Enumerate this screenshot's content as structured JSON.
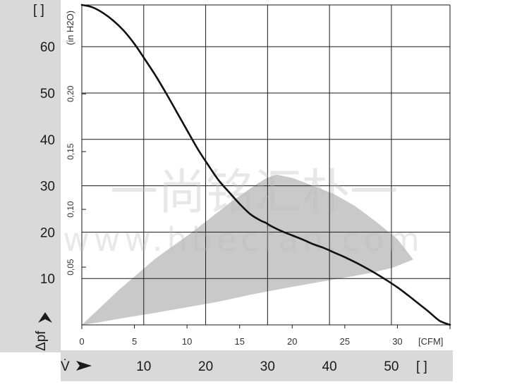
{
  "chart_data": {
    "type": "line",
    "title": "",
    "left_axis": {
      "unit_bracket": "[    ]",
      "symbol": "Δpf",
      "ticks": [
        10,
        20,
        30,
        40,
        50,
        60
      ],
      "range": [
        0,
        69
      ]
    },
    "inner_y_axis": {
      "label": "(in H2O)",
      "ticks": [
        "0,05",
        "0,10",
        "0,15",
        "0,20"
      ],
      "tick_values": [
        0.05,
        0.1,
        0.15,
        0.2
      ]
    },
    "bottom_axis": {
      "symbol": "V̇",
      "ticks": [
        10,
        20,
        30,
        40,
        50
      ],
      "unit_bracket": "[    ]"
    },
    "inner_x_axis": {
      "ticks": [
        "0",
        "5",
        "10",
        "15",
        "20",
        "25",
        "30"
      ],
      "tick_values": [
        0,
        5,
        10,
        15,
        20,
        25,
        30
      ],
      "unit": "[CFM]",
      "range": [
        0,
        35
      ]
    },
    "series": [
      {
        "x": [
          0,
          1,
          2,
          3,
          4,
          5,
          5.9,
          7,
          8,
          9,
          10,
          11,
          12,
          13,
          14,
          15,
          16,
          17,
          17.5,
          18,
          19,
          20,
          21,
          22,
          23,
          24,
          25,
          26,
          27,
          28,
          29,
          30,
          31,
          32,
          33,
          34,
          35
        ],
        "y": [
          69,
          68.5,
          67.3,
          65.6,
          63.4,
          60.6,
          57.6,
          53.8,
          50,
          46,
          42,
          38,
          34.5,
          31.2,
          28.6,
          26.1,
          23.9,
          22.5,
          22,
          21.3,
          20.2,
          19.3,
          18.4,
          17.4,
          16.6,
          15.6,
          14.6,
          13.5,
          12.3,
          11,
          9.6,
          8.1,
          6.4,
          4.6,
          2.8,
          0.9,
          0
        ]
      }
    ],
    "operating_region": {
      "x": [
        0,
        3.5,
        7,
        10.5,
        14,
        16,
        17.5,
        18.5,
        20,
        22,
        24,
        26,
        28,
        30,
        31.5,
        29.5,
        27.5,
        25,
        22,
        19,
        16,
        13,
        10,
        7,
        4,
        1.5,
        0
      ],
      "y": [
        0,
        7.5,
        14.3,
        20,
        26.2,
        29.4,
        31.6,
        32.4,
        31.7,
        30,
        28.2,
        25.6,
        22.2,
        18.5,
        14.1,
        12.3,
        11.2,
        10.2,
        9,
        7.8,
        6.5,
        5,
        3.8,
        2.6,
        1.5,
        0.5,
        0
      ]
    },
    "grid": true,
    "watermark": {
      "title": "一尚铭汇朴一",
      "url": "www.hbecfan.com"
    }
  }
}
